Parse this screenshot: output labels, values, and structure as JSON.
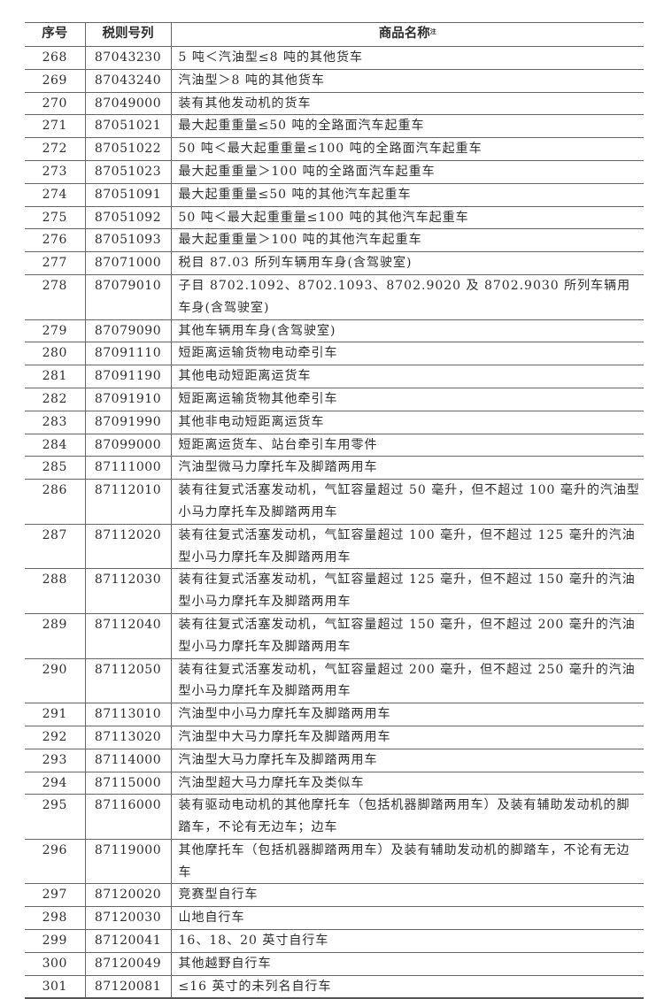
{
  "header": {
    "seq": "序号",
    "code": "税则号列",
    "name": "商品名称",
    "name_note": "注"
  },
  "rows": [
    {
      "seq": "268",
      "code": "87043230",
      "name": "5 吨＜汽油型≤8 吨的其他货车"
    },
    {
      "seq": "269",
      "code": "87043240",
      "name": "汽油型＞8 吨的其他货车"
    },
    {
      "seq": "270",
      "code": "87049000",
      "name": "装有其他发动机的货车"
    },
    {
      "seq": "271",
      "code": "87051021",
      "name": "最大起重重量≤50 吨的全路面汽车起重车"
    },
    {
      "seq": "272",
      "code": "87051022",
      "name": "50 吨＜最大起重重量≤100 吨的全路面汽车起重车"
    },
    {
      "seq": "273",
      "code": "87051023",
      "name": "最大起重重量＞100 吨的全路面汽车起重车"
    },
    {
      "seq": "274",
      "code": "87051091",
      "name": "最大起重重量≤50 吨的其他汽车起重车"
    },
    {
      "seq": "275",
      "code": "87051092",
      "name": "50 吨＜最大起重重量≤100 吨的其他汽车起重车"
    },
    {
      "seq": "276",
      "code": "87051093",
      "name": "最大起重重量＞100 吨的其他汽车起重车"
    },
    {
      "seq": "277",
      "code": "87071000",
      "name": "税目 87.03 所列车辆用车身(含驾驶室)"
    },
    {
      "seq": "278",
      "code": "87079010",
      "name": "子目 8702.1092、8702.1093、8702.9020 及 8702.9030 所列车辆用车身(含驾驶室)"
    },
    {
      "seq": "279",
      "code": "87079090",
      "name": "其他车辆用车身(含驾驶室)"
    },
    {
      "seq": "280",
      "code": "87091110",
      "name": "短距离运输货物电动牵引车"
    },
    {
      "seq": "281",
      "code": "87091190",
      "name": "其他电动短距离运货车"
    },
    {
      "seq": "282",
      "code": "87091910",
      "name": "短距离运输货物其他牵引车"
    },
    {
      "seq": "283",
      "code": "87091990",
      "name": "其他非电动短距离运货车"
    },
    {
      "seq": "284",
      "code": "87099000",
      "name": "短距离运货车、站台牵引车用零件"
    },
    {
      "seq": "285",
      "code": "87111000",
      "name": "汽油型微马力摩托车及脚踏两用车"
    },
    {
      "seq": "286",
      "code": "87112010",
      "name": "装有往复式活塞发动机，气缸容量超过 50 毫升，但不超过 100 毫升的汽油型小马力摩托车及脚踏两用车"
    },
    {
      "seq": "287",
      "code": "87112020",
      "name": "装有往复式活塞发动机，气缸容量超过 100 毫升，但不超过 125 毫升的汽油型小马力摩托车及脚踏两用车"
    },
    {
      "seq": "288",
      "code": "87112030",
      "name": "装有往复式活塞发动机，气缸容量超过 125 毫升，但不超过 150 毫升的汽油型小马力摩托车及脚踏两用车"
    },
    {
      "seq": "289",
      "code": "87112040",
      "name": "装有往复式活塞发动机，气缸容量超过 150 毫升，但不超过 200 毫升的汽油型小马力摩托车及脚踏两用车"
    },
    {
      "seq": "290",
      "code": "87112050",
      "name": "装有往复式活塞发动机，气缸容量超过 200 毫升，但不超过 250 毫升的汽油型小马力摩托车及脚踏两用车"
    },
    {
      "seq": "291",
      "code": "87113010",
      "name": "汽油型中小马力摩托车及脚踏两用车"
    },
    {
      "seq": "292",
      "code": "87113020",
      "name": "汽油型中大马力摩托车及脚踏两用车"
    },
    {
      "seq": "293",
      "code": "87114000",
      "name": "汽油型大马力摩托车及脚踏两用车"
    },
    {
      "seq": "294",
      "code": "87115000",
      "name": "汽油型超大马力摩托车及类似车"
    },
    {
      "seq": "295",
      "code": "87116000",
      "name": "装有驱动电动机的其他摩托车（包括机器脚踏两用车）及装有辅助发动机的脚踏车，不论有无边车；边车"
    },
    {
      "seq": "296",
      "code": "87119000",
      "name": "其他摩托车（包括机器脚踏两用车）及装有辅助发动机的脚踏车，不论有无边车"
    },
    {
      "seq": "297",
      "code": "87120020",
      "name": "竞赛型自行车"
    },
    {
      "seq": "298",
      "code": "87120030",
      "name": "山地自行车"
    },
    {
      "seq": "299",
      "code": "87120041",
      "name": "16、18、20 英寸自行车"
    },
    {
      "seq": "300",
      "code": "87120049",
      "name": "其他越野自行车"
    },
    {
      "seq": "301",
      "code": "87120081",
      "name": "≤16 英寸的未列名自行车"
    }
  ]
}
